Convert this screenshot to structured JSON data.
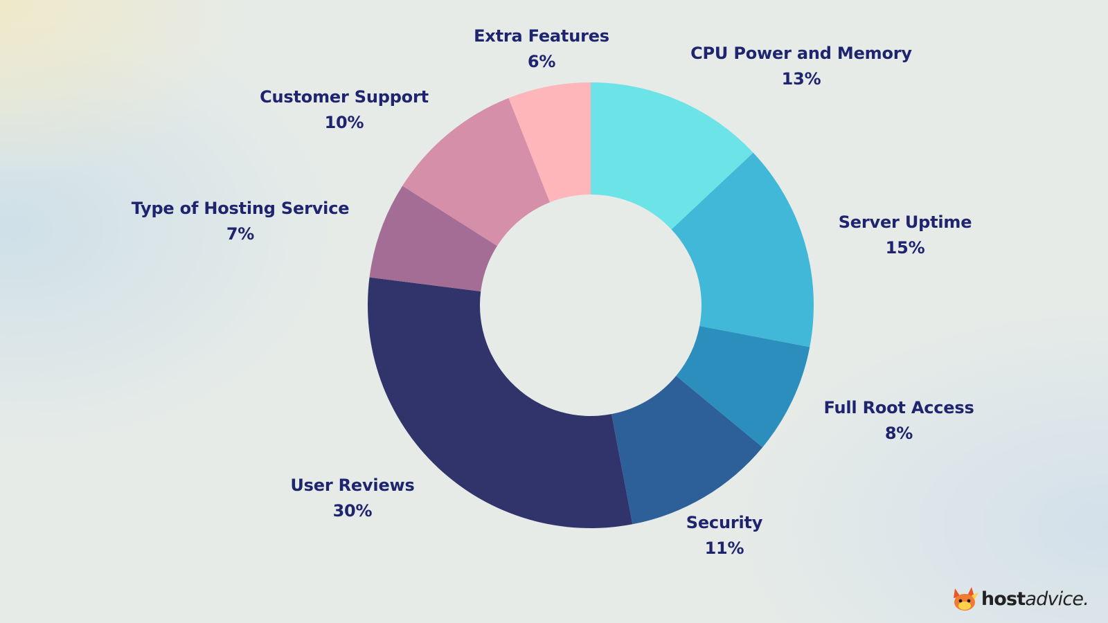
{
  "chart_data": {
    "type": "pie",
    "variant": "donut",
    "slices": [
      {
        "label": "CPU Power and Memory",
        "value": 13,
        "value_label": "13%",
        "color": "#6ce4e7"
      },
      {
        "label": "Server Uptime",
        "value": 15,
        "value_label": "15%",
        "color": "#42b8d8"
      },
      {
        "label": "Full Root Access",
        "value": 8,
        "value_label": "8%",
        "color": "#2c8ebd"
      },
      {
        "label": "Security",
        "value": 11,
        "value_label": "11%",
        "color": "#2d5f98"
      },
      {
        "label": "User Reviews",
        "value": 30,
        "value_label": "30%",
        "color": "#30346b"
      },
      {
        "label": "Type of Hosting Service",
        "value": 7,
        "value_label": "7%",
        "color": "#a36d95"
      },
      {
        "label": "Customer Support",
        "value": 10,
        "value_label": "10%",
        "color": "#d58fa8"
      },
      {
        "label": "Extra Features",
        "value": 6,
        "value_label": "6%",
        "color": "#ffb6ba"
      }
    ],
    "label_color": "#1e246e",
    "legend": "none",
    "labels_position": "outside"
  },
  "logo": {
    "brand_bold": "host",
    "brand_regular": "advice."
  }
}
